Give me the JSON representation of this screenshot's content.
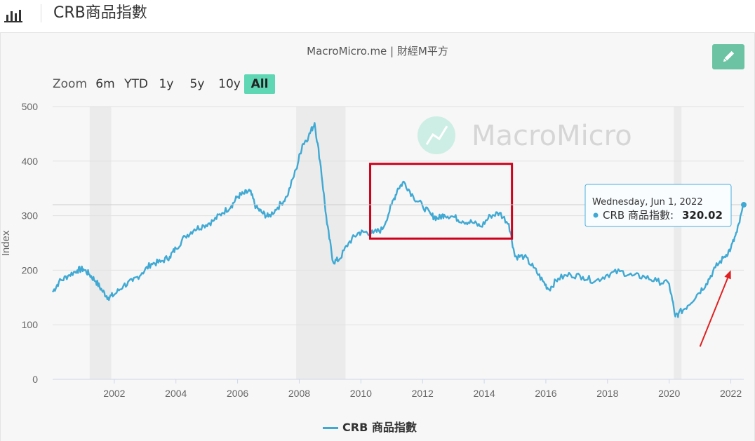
{
  "header": {
    "title": "CRB商品指數",
    "chart_icon": "bar-chart-icon"
  },
  "source_label": "MacroMicro.me | 財經M平方",
  "edit_icon": "pencil-icon",
  "watermark": "MacroMicro",
  "zoom": {
    "label": "Zoom",
    "buttons": [
      "6m",
      "YTD",
      "1y",
      "5y",
      "10y",
      "All"
    ],
    "active": "All"
  },
  "tooltip": {
    "date": "Wednesday, Jun 1, 2022",
    "series": "CRB 商品指數:",
    "value": "320.02"
  },
  "legend": {
    "label": "CRB 商品指數"
  },
  "colors": {
    "line": "#40a9d3",
    "accent": "#5fd6b4",
    "recession": "#ebebeb",
    "highlight_box": "#d0021b",
    "arrow": "#e02020"
  },
  "chart_data": {
    "type": "line",
    "ylabel": "Index",
    "ylim": [
      0,
      500
    ],
    "yticks": [
      0,
      100,
      200,
      300,
      400,
      500
    ],
    "xlim": [
      2000.0,
      2022.42
    ],
    "xticks": [
      2002,
      2004,
      2006,
      2008,
      2010,
      2012,
      2014,
      2016,
      2018,
      2020,
      2022
    ],
    "grid": true,
    "recession_shading": [
      [
        2001.2,
        2001.9
      ],
      [
        2007.9,
        2009.5
      ],
      [
        2020.15,
        2020.4
      ]
    ],
    "series": [
      {
        "name": "CRB 商品指數",
        "x": [
          2000.0,
          2000.2,
          2000.5,
          2000.8,
          2001.0,
          2001.2,
          2001.4,
          2001.6,
          2001.8,
          2002.0,
          2002.3,
          2002.6,
          2002.9,
          2003.2,
          2003.5,
          2003.8,
          2004.0,
          2004.3,
          2004.6,
          2004.9,
          2005.2,
          2005.5,
          2005.8,
          2006.0,
          2006.2,
          2006.4,
          2006.6,
          2006.8,
          2007.0,
          2007.3,
          2007.6,
          2007.9,
          2008.1,
          2008.3,
          2008.5,
          2008.7,
          2008.9,
          2009.1,
          2009.3,
          2009.6,
          2009.9,
          2010.1,
          2010.4,
          2010.7,
          2011.0,
          2011.2,
          2011.4,
          2011.7,
          2012.0,
          2012.3,
          2012.5,
          2012.7,
          2013.0,
          2013.3,
          2013.6,
          2013.9,
          2014.2,
          2014.5,
          2014.8,
          2015.0,
          2015.3,
          2015.6,
          2015.9,
          2016.1,
          2016.4,
          2016.8,
          2017.2,
          2017.6,
          2018.0,
          2018.4,
          2018.8,
          2019.2,
          2019.6,
          2020.0,
          2020.2,
          2020.3,
          2020.6,
          2020.9,
          2021.2,
          2021.5,
          2021.8,
          2022.0,
          2022.2,
          2022.42
        ],
        "values": [
          160,
          178,
          190,
          200,
          202,
          192,
          180,
          163,
          150,
          155,
          172,
          180,
          195,
          212,
          215,
          225,
          240,
          262,
          275,
          282,
          290,
          305,
          318,
          335,
          340,
          345,
          315,
          305,
          298,
          315,
          335,
          385,
          430,
          445,
          470,
          390,
          285,
          215,
          220,
          250,
          268,
          270,
          268,
          275,
          320,
          350,
          362,
          335,
          318,
          300,
          295,
          302,
          298,
          290,
          288,
          280,
          300,
          305,
          285,
          225,
          225,
          205,
          180,
          165,
          185,
          192,
          188,
          180,
          192,
          198,
          190,
          188,
          180,
          175,
          115,
          120,
          135,
          155,
          175,
          205,
          225,
          240,
          270,
          320
        ]
      }
    ],
    "annotations": [
      {
        "type": "tooltip",
        "x": 2022.42,
        "y": 320.02,
        "text": "Wednesday, Jun 1, 2022"
      },
      {
        "type": "highlight_box",
        "x_range": [
          2010.3,
          2014.9
        ],
        "y_range": [
          258,
          395
        ]
      },
      {
        "type": "arrow",
        "from": [
          2021.0,
          60
        ],
        "to": [
          2022.0,
          200
        ]
      }
    ]
  }
}
